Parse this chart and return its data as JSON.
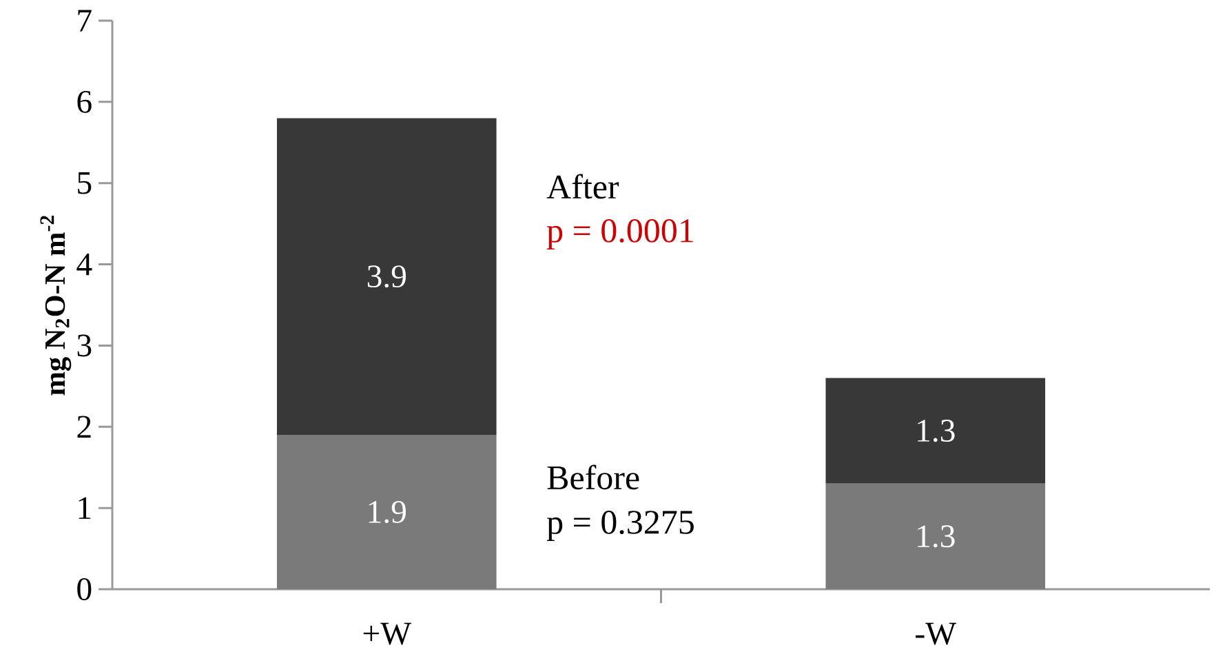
{
  "chart_data": {
    "type": "bar",
    "stacked": true,
    "categories": [
      "+W",
      "-W"
    ],
    "series": [
      {
        "name": "Before",
        "color": "#7a7a7a",
        "values": [
          1.9,
          1.3
        ]
      },
      {
        "name": "After",
        "color": "#383838",
        "values": [
          3.9,
          1.3
        ]
      }
    ],
    "ylabel": "mg N$_{2}$O-N m$^{-2}$",
    "ylim": [
      0,
      7
    ],
    "yticks": [
      0,
      1,
      2,
      3,
      4,
      5,
      6,
      7
    ],
    "data_labels": true,
    "grid": false,
    "legend": false,
    "annotations": [
      "p = 0.3275",
      "p = 0.0001"
    ]
  }
}
